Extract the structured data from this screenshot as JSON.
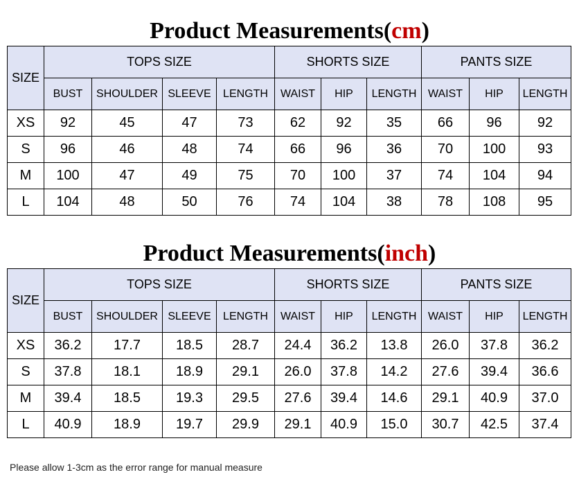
{
  "cm": {
    "title": "Product Measurements(",
    "unit": "cm",
    "close": ")",
    "size_header": "SIZE",
    "groups": [
      "TOPS SIZE",
      "SHORTS SIZE",
      "PANTS SIZE"
    ],
    "columns": [
      "BUST",
      "SHOULDER",
      "SLEEVE",
      "LENGTH",
      "WAIST",
      "HIP",
      "LENGTH",
      "WAIST",
      "HIP",
      "LENGTH"
    ],
    "rows": [
      {
        "size": "XS",
        "values": [
          "92",
          "45",
          "47",
          "73",
          "62",
          "92",
          "35",
          "66",
          "96",
          "92"
        ]
      },
      {
        "size": "S",
        "values": [
          "96",
          "46",
          "48",
          "74",
          "66",
          "96",
          "36",
          "70",
          "100",
          "93"
        ]
      },
      {
        "size": "M",
        "values": [
          "100",
          "47",
          "49",
          "75",
          "70",
          "100",
          "37",
          "74",
          "104",
          "94"
        ]
      },
      {
        "size": "L",
        "values": [
          "104",
          "48",
          "50",
          "76",
          "74",
          "104",
          "38",
          "78",
          "108",
          "95"
        ]
      }
    ]
  },
  "inch": {
    "title": "Product Measurements(",
    "unit": "inch",
    "close": ")",
    "size_header": "SIZE",
    "groups": [
      "TOPS SIZE",
      "SHORTS SIZE",
      "PANTS SIZE"
    ],
    "columns": [
      "BUST",
      "SHOULDER",
      "SLEEVE",
      "LENGTH",
      "WAIST",
      "HIP",
      "LENGTH",
      "WAIST",
      "HIP",
      "LENGTH"
    ],
    "rows": [
      {
        "size": "XS",
        "values": [
          "36.2",
          "17.7",
          "18.5",
          "28.7",
          "24.4",
          "36.2",
          "13.8",
          "26.0",
          "37.8",
          "36.2"
        ]
      },
      {
        "size": "S",
        "values": [
          "37.8",
          "18.1",
          "18.9",
          "29.1",
          "26.0",
          "37.8",
          "14.2",
          "27.6",
          "39.4",
          "36.6"
        ]
      },
      {
        "size": "M",
        "values": [
          "39.4",
          "18.5",
          "19.3",
          "29.5",
          "27.6",
          "39.4",
          "14.6",
          "29.1",
          "40.9",
          "37.0"
        ]
      },
      {
        "size": "L",
        "values": [
          "40.9",
          "18.9",
          "19.7",
          "29.9",
          "29.1",
          "40.9",
          "15.0",
          "30.7",
          "42.5",
          "37.4"
        ]
      }
    ]
  },
  "note": "Please allow 1-3cm as the error range for manual measure",
  "colors": {
    "header_bg": "#dfe3f4",
    "unit_red": "#c00000"
  }
}
